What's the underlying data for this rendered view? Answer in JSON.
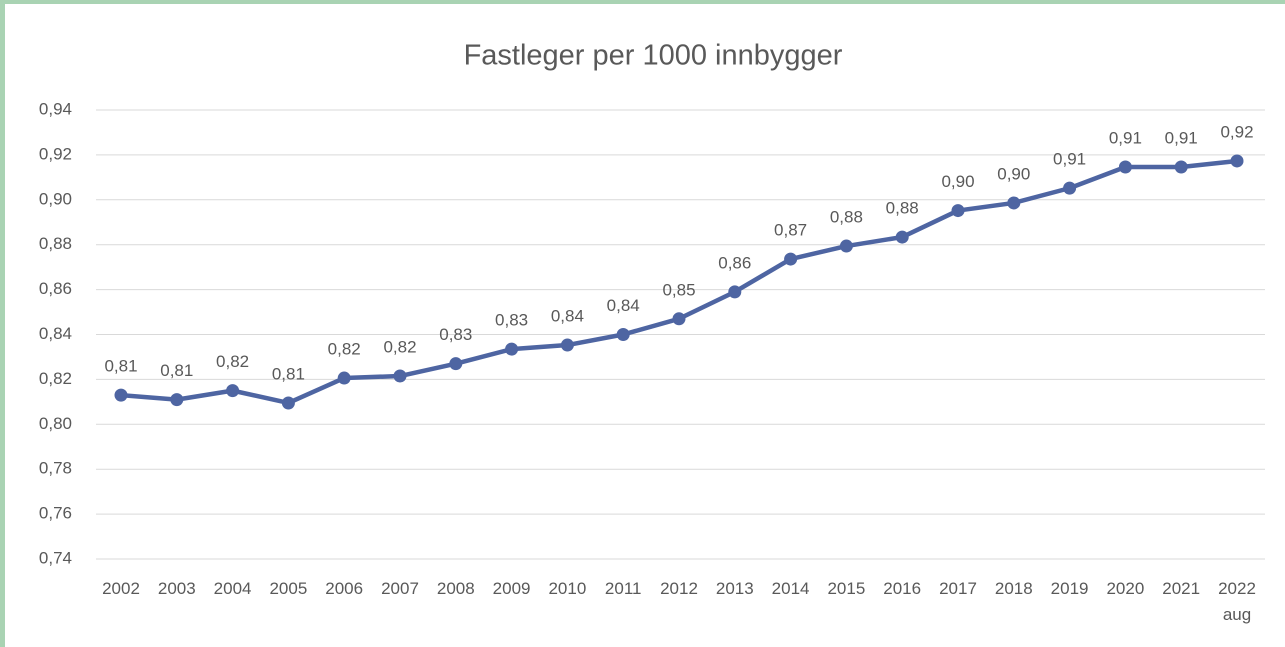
{
  "chart_data": {
    "type": "line",
    "title": "Fastleger per 1000 innbygger",
    "categories": [
      "2002",
      "2003",
      "2004",
      "2005",
      "2006",
      "2007",
      "2008",
      "2009",
      "2010",
      "2011",
      "2012",
      "2013",
      "2014",
      "2015",
      "2016",
      "2017",
      "2018",
      "2019",
      "2020",
      "2021",
      "2022 aug"
    ],
    "series": [
      {
        "name": "Fastleger per 1000 innbygger",
        "color": "#4e65a2",
        "values": [
          0.813,
          0.811,
          0.815,
          0.8095,
          0.8206,
          0.8215,
          0.827,
          0.8335,
          0.8353,
          0.84,
          0.847,
          0.859,
          0.8736,
          0.8794,
          0.8834,
          0.8952,
          0.8986,
          0.9052,
          0.9146,
          0.9146,
          0.9173
        ],
        "value_labels": [
          "0,81",
          "0,81",
          "0,82",
          "0,81",
          "0,82",
          "0,82",
          "0,83",
          "0,83",
          "0,84",
          "0,84",
          "0,85",
          "0,86",
          "0,87",
          "0,88",
          "0,88",
          "0,90",
          "0,90",
          "0,91",
          "0,91",
          "0,91",
          "0,92"
        ]
      }
    ],
    "ylim": [
      0.74,
      0.94
    ],
    "yticks": [
      {
        "value": 0.74,
        "label": "0,74"
      },
      {
        "value": 0.76,
        "label": "0,76"
      },
      {
        "value": 0.78,
        "label": "0,78"
      },
      {
        "value": 0.8,
        "label": "0,80"
      },
      {
        "value": 0.82,
        "label": "0,82"
      },
      {
        "value": 0.84,
        "label": "0,84"
      },
      {
        "value": 0.86,
        "label": "0,86"
      },
      {
        "value": 0.88,
        "label": "0,88"
      },
      {
        "value": 0.9,
        "label": "0,90"
      },
      {
        "value": 0.92,
        "label": "0,92"
      },
      {
        "value": 0.94,
        "label": "0,94"
      }
    ],
    "grid": true
  }
}
